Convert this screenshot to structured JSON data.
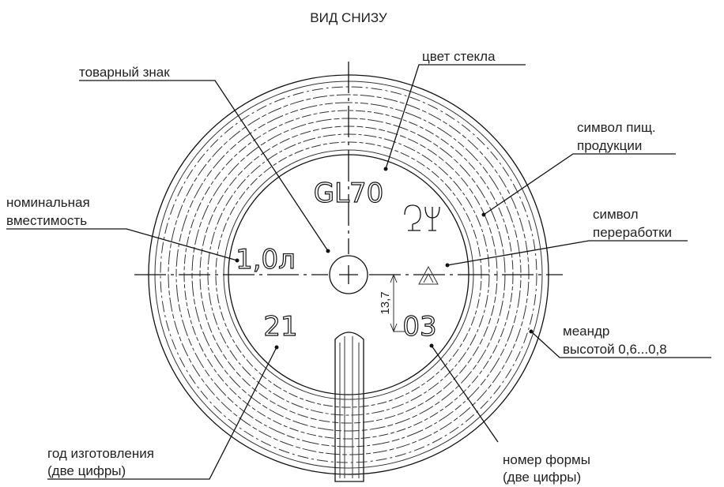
{
  "title": "ВИД СНИЗУ",
  "labels": [
    {
      "lines": [
        "товарный знак"
      ]
    },
    {
      "lines": [
        "цвет стекла"
      ]
    },
    {
      "lines": [
        "символ пищ.",
        "продукции"
      ]
    },
    {
      "lines": [
        "номинальная",
        "вместимость"
      ]
    },
    {
      "lines": [
        "символ",
        "переработки"
      ]
    },
    {
      "lines": [
        "меандр",
        "высотой 0,6...0,8"
      ]
    },
    {
      "lines": [
        "год изготовления",
        "(две цифры)"
      ]
    },
    {
      "lines": [
        "номер формы",
        "(две цифры)"
      ]
    }
  ],
  "marks": {
    "glass": "GL70",
    "volume": "1,0л",
    "year": "21",
    "mould": "03",
    "dimension": "13,7"
  }
}
